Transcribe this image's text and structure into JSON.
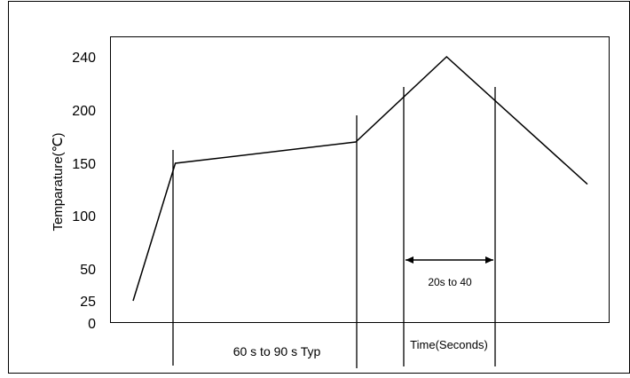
{
  "chart_data": {
    "type": "line",
    "title": "",
    "xlabel": "Time(Seconds)",
    "ylabel": "Temparature(℃)",
    "y_ticks": [
      "240",
      "200",
      "150",
      "100",
      "50",
      "25",
      "0"
    ],
    "grid": false,
    "legend": "none",
    "series": [
      {
        "color": "#000000",
        "points": [
          {
            "t": 0.0,
            "y": 25
          },
          {
            "t": 0.093,
            "y": 150
          },
          {
            "t": 0.49,
            "y": 170
          },
          {
            "t": 0.69,
            "y": 240
          },
          {
            "t": 1.0,
            "y": 130
          }
        ]
      }
    ],
    "annotations": [
      {
        "label": "60 s to 90 s Typ"
      },
      {
        "label": "20s to 40"
      }
    ]
  }
}
